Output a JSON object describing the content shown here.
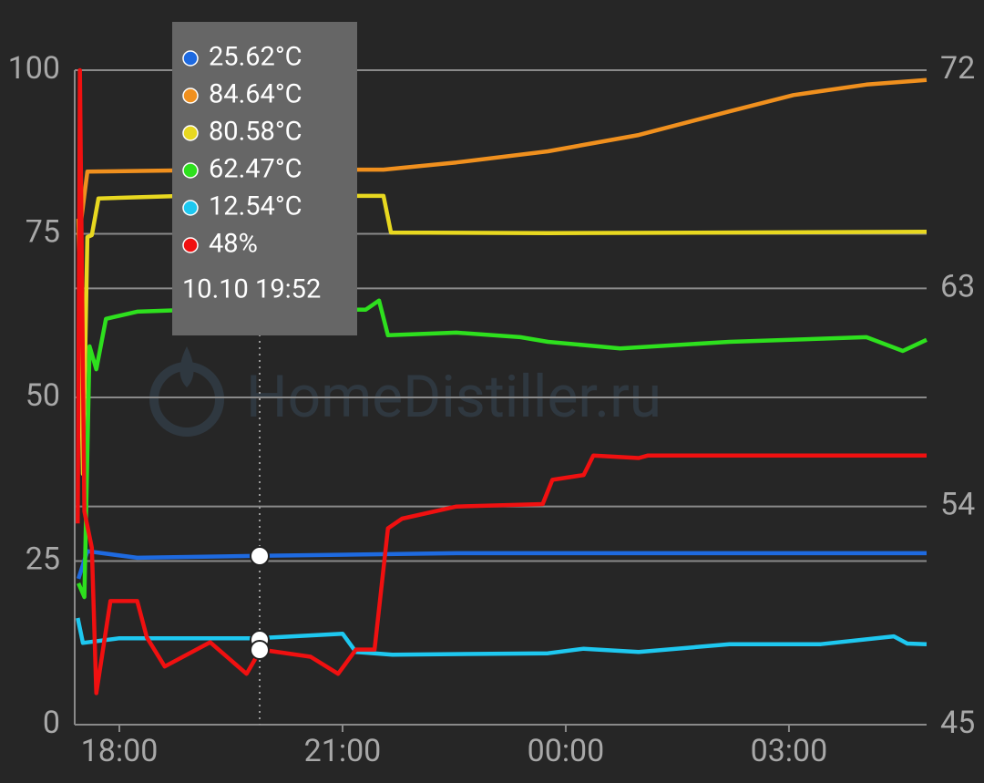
{
  "chart_data": {
    "type": "line",
    "watermark": "HomeDistiller.ru",
    "xlim": [
      17.4,
      28.85
    ],
    "xticks": [
      {
        "value": 18,
        "label": "18:00"
      },
      {
        "value": 21,
        "label": "21:00"
      },
      {
        "value": 24,
        "label": "00:00"
      },
      {
        "value": 27,
        "label": "03:00"
      }
    ],
    "ylim": [
      0,
      100
    ],
    "yticks": [
      0,
      25,
      50,
      75,
      100
    ],
    "y2lim": [
      45,
      72
    ],
    "y2ticks": [
      45,
      54,
      63,
      72
    ],
    "grid": true,
    "series": [
      {
        "color": "#1e6ae0",
        "x": [
          17.45,
          17.57,
          18.24,
          19.9,
          22.53,
          26.2,
          28.85
        ],
        "values": [
          22.3,
          26.5,
          25.5,
          25.8,
          26.2,
          26.2,
          26.2
        ]
      },
      {
        "color": "#f0901e",
        "x": [
          17.49,
          17.57,
          18.86,
          20.08,
          21.55,
          22.53,
          23.76,
          24.98,
          26.2,
          27.06,
          28.04,
          28.85
        ],
        "values": [
          77.3,
          84.5,
          84.7,
          84.8,
          84.8,
          85.9,
          87.6,
          90.1,
          93.7,
          96.2,
          97.8,
          98.5
        ]
      },
      {
        "color": "#e8d820",
        "x": [
          17.45,
          17.51,
          17.57,
          17.63,
          17.72,
          18.86,
          21.55,
          21.65,
          23.76,
          28.85
        ],
        "values": [
          77.3,
          38.3,
          74.5,
          74.8,
          80.4,
          80.8,
          80.8,
          75.2,
          75.1,
          75.3
        ]
      },
      {
        "color": "#2ee01e",
        "x": [
          17.45,
          17.53,
          17.6,
          17.69,
          17.82,
          18.24,
          19.47,
          21.31,
          21.49,
          21.61,
          22.53,
          23.39,
          23.76,
          24.73,
          26.2,
          28.04,
          28.53,
          28.85
        ],
        "values": [
          21.6,
          19.5,
          57.8,
          54.3,
          62.0,
          63.1,
          63.6,
          63.4,
          64.8,
          59.5,
          59.9,
          59.2,
          58.5,
          57.5,
          58.5,
          59.2,
          57.1,
          58.8
        ]
      },
      {
        "color": "#1ec8f0",
        "x": [
          17.44,
          17.51,
          18.0,
          19.84,
          21.0,
          21.18,
          21.67,
          23.76,
          24.24,
          24.98,
          26.2,
          27.43,
          28.41,
          28.59,
          28.85
        ],
        "values": [
          16.3,
          12.5,
          13.2,
          13.2,
          13.9,
          11.1,
          10.7,
          10.9,
          11.6,
          11.1,
          12.3,
          12.3,
          13.5,
          12.4,
          12.3
        ]
      },
      {
        "color": "#f01010",
        "axis": "y2",
        "x": [
          17.44,
          17.47,
          17.53,
          17.63,
          17.69,
          17.88,
          18.24,
          18.37,
          18.61,
          19.22,
          19.71,
          19.9,
          20.57,
          20.94,
          21.18,
          21.43,
          21.61,
          21.8,
          22.53,
          23.69,
          23.82,
          24.24,
          24.37,
          24.98,
          25.1,
          28.85
        ],
        "values": [
          53.3,
          72.0,
          53.8,
          52.3,
          46.3,
          50.1,
          50.1,
          48.6,
          47.4,
          48.4,
          47.1,
          48.1,
          47.8,
          47.1,
          48.1,
          48.1,
          53.1,
          53.5,
          54.0,
          54.1,
          55.1,
          55.3,
          56.1,
          56.0,
          56.1,
          56.1
        ]
      }
    ],
    "tooltip": {
      "entries": [
        {
          "text": "25.62°C",
          "color": "#1e6ae0"
        },
        {
          "text": "84.64°C",
          "color": "#f0901e"
        },
        {
          "text": "80.58°C",
          "color": "#e8d820"
        },
        {
          "text": "62.47°C",
          "color": "#2ee01e"
        },
        {
          "text": "12.54°C",
          "color": "#1ec8f0"
        },
        {
          "text": "48%",
          "color": "#f01010"
        }
      ],
      "time": "10.10 19:52"
    }
  }
}
